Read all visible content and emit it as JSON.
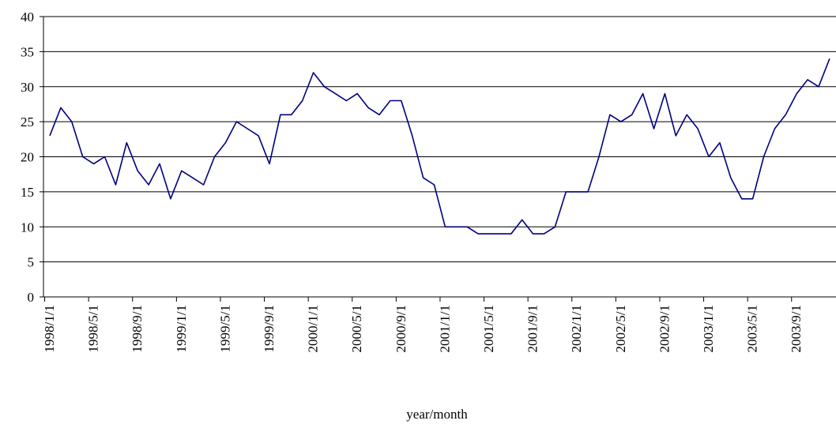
{
  "chart_data": {
    "type": "line",
    "xlabel": "year/month",
    "ylabel": "",
    "ylim": [
      0,
      40
    ],
    "yticks": [
      0,
      5,
      10,
      15,
      20,
      25,
      30,
      35,
      40
    ],
    "grid": "horizontal",
    "legend": "none",
    "colors": {
      "series": "#000080",
      "grid": "#000000"
    },
    "x_tick_labels": [
      "1998/1/1",
      "1998/5/1",
      "1998/9/1",
      "1999/1/1",
      "1999/5/1",
      "1999/9/1",
      "2000/1/1",
      "2000/5/1",
      "2000/9/1",
      "2001/1/1",
      "2001/5/1",
      "2001/9/1",
      "2002/1/1",
      "2002/5/1",
      "2002/9/1",
      "2003/1/1",
      "2003/5/1",
      "2003/9/1"
    ],
    "x": [
      "1998/1",
      "1998/2",
      "1998/3",
      "1998/4",
      "1998/5",
      "1998/6",
      "1998/7",
      "1998/8",
      "1998/9",
      "1998/10",
      "1998/11",
      "1998/12",
      "1999/1",
      "1999/2",
      "1999/3",
      "1999/4",
      "1999/5",
      "1999/6",
      "1999/7",
      "1999/8",
      "1999/9",
      "1999/10",
      "1999/11",
      "1999/12",
      "2000/1",
      "2000/2",
      "2000/3",
      "2000/4",
      "2000/5",
      "2000/6",
      "2000/7",
      "2000/8",
      "2000/9",
      "2000/10",
      "2000/11",
      "2000/12",
      "2001/1",
      "2001/2",
      "2001/3",
      "2001/4",
      "2001/5",
      "2001/6",
      "2001/7",
      "2001/8",
      "2001/9",
      "2001/10",
      "2001/11",
      "2001/12",
      "2002/1",
      "2002/2",
      "2002/3",
      "2002/4",
      "2002/5",
      "2002/6",
      "2002/7",
      "2002/8",
      "2002/9",
      "2002/10",
      "2002/11",
      "2002/12",
      "2003/1",
      "2003/2",
      "2003/3",
      "2003/4",
      "2003/5",
      "2003/6",
      "2003/7",
      "2003/8",
      "2003/9",
      "2003/10",
      "2003/11",
      "2003/12"
    ],
    "series": [
      {
        "values": [
          23,
          27,
          25,
          20,
          19,
          20,
          16,
          22,
          18,
          16,
          19,
          14,
          18,
          17,
          16,
          20,
          22,
          25,
          24,
          23,
          19,
          26,
          26,
          28,
          32,
          30,
          29,
          28,
          29,
          27,
          26,
          28,
          28,
          23,
          17,
          16,
          10,
          10,
          10,
          9,
          9,
          9,
          9,
          11,
          9,
          9,
          10,
          15,
          15,
          15,
          20,
          26,
          25,
          26,
          29,
          24,
          29,
          23,
          26,
          24,
          20,
          22,
          17,
          14,
          14,
          20,
          24,
          26,
          29,
          31,
          30,
          34
        ]
      }
    ]
  }
}
